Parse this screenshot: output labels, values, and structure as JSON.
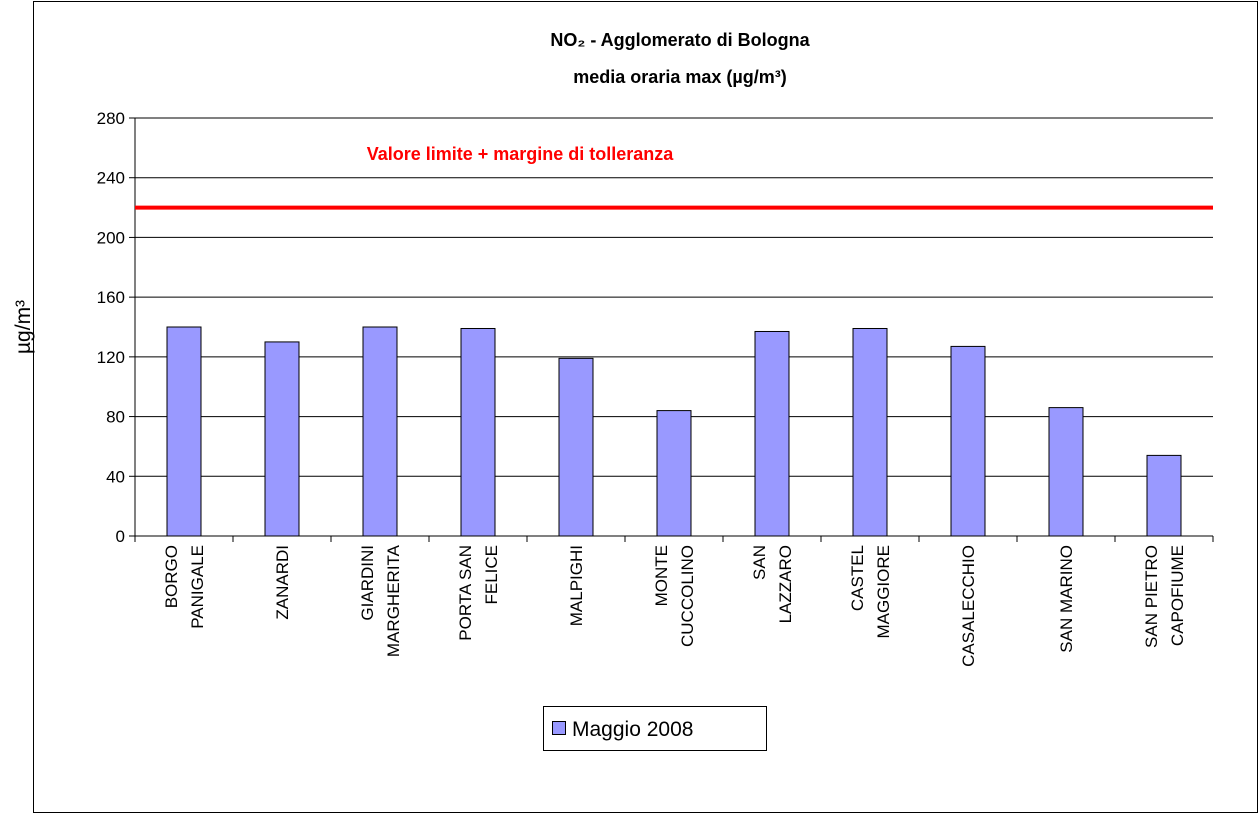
{
  "chart_data": {
    "type": "bar",
    "title": "NO₂ - Agglomerato di Bologna",
    "subtitle": "media oraria max  (µg/m³)",
    "y_label": "µg/m³",
    "categories": [
      "BORGO\nPANIGALE",
      "ZANARDI",
      "GIARDINI\nMARGHERITA",
      "PORTA SAN\nFELICE",
      "MALPIGHI",
      "MONTE\nCUCCOLINO",
      "SAN\nLAZZARO",
      "CASTEL\nMAGGIORE",
      "CASALECCHIO",
      "SAN MARINO",
      "SAN PIETRO\nCAPOFIUME"
    ],
    "series": [
      {
        "name": "Maggio 2008",
        "color": "#9999ff",
        "values": [
          140,
          130,
          140,
          139,
          119,
          84,
          137,
          139,
          127,
          86,
          54
        ]
      }
    ],
    "ylim": [
      0,
      280
    ],
    "yticks": [
      0,
      40,
      80,
      120,
      160,
      200,
      240,
      280
    ],
    "grid": true,
    "reference_line": {
      "value": 220,
      "label": "Valore limite + margine di tolleranza",
      "color": "#ff0000"
    },
    "legend": "bottom"
  }
}
